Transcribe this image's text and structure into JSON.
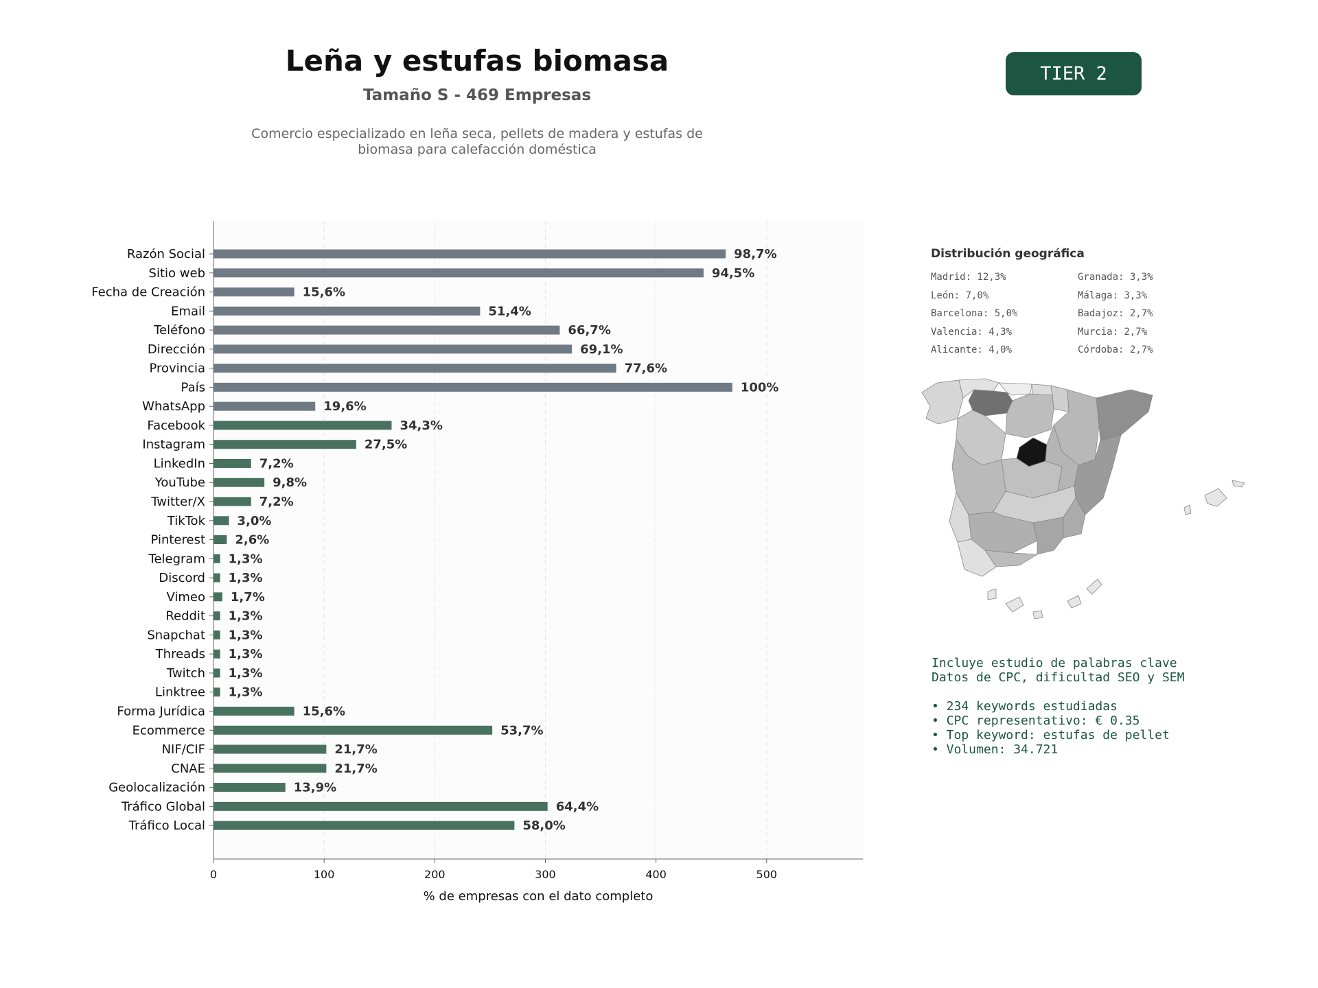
{
  "header": {
    "title": "Leña y estufas biomasa",
    "subtitle": "Tamaño S - 469 Empresas",
    "description_line1": "Comercio especializado en leña seca, pellets de madera y estufas de",
    "description_line2": "biomasa para calefacción doméstica",
    "tier_badge": "TIER 2"
  },
  "chart_data": {
    "type": "bar",
    "orientation": "horizontal",
    "xlabel": "% de empresas con el dato completo",
    "xlim": [
      0,
      587
    ],
    "xticks": [
      0,
      100,
      200,
      300,
      400,
      500
    ],
    "grid": "vertical dashed",
    "colors": {
      "basic": "#6f7a84",
      "extended": "#48725f"
    },
    "categories": [
      "Razón Social",
      "Sitio web",
      "Fecha de Creación",
      "Email",
      "Teléfono",
      "Dirección",
      "Provincia",
      "País",
      "WhatsApp",
      "Facebook",
      "Instagram",
      "LinkedIn",
      "YouTube",
      "Twitter/X",
      "TikTok",
      "Pinterest",
      "Telegram",
      "Discord",
      "Vimeo",
      "Reddit",
      "Snapchat",
      "Threads",
      "Twitch",
      "Linktree",
      "Forma Jurídica",
      "Ecommerce",
      "NIF/CIF",
      "CNAE",
      "Geolocalización",
      "Tráfico Global",
      "Tráfico Local"
    ],
    "values": [
      463,
      443,
      73,
      241,
      313,
      324,
      364,
      469,
      92,
      161,
      129,
      34,
      46,
      34,
      14,
      12,
      6,
      6,
      8,
      6,
      6,
      6,
      6,
      6,
      73,
      252,
      102,
      102,
      65,
      302,
      272
    ],
    "labels": [
      "98,7%",
      "94,5%",
      "15,6%",
      "51,4%",
      "66,7%",
      "69,1%",
      "77,6%",
      "100%",
      "19,6%",
      "34,3%",
      "27,5%",
      "7,2%",
      "9,8%",
      "7,2%",
      "3,0%",
      "2,6%",
      "1,3%",
      "1,3%",
      "1,7%",
      "1,3%",
      "1,3%",
      "1,3%",
      "1,3%",
      "1,3%",
      "15,6%",
      "53,7%",
      "21,7%",
      "21,7%",
      "13,9%",
      "64,4%",
      "58,0%"
    ],
    "groups": [
      "basic",
      "basic",
      "basic",
      "basic",
      "basic",
      "basic",
      "basic",
      "basic",
      "basic",
      "extended",
      "extended",
      "extended",
      "extended",
      "extended",
      "extended",
      "extended",
      "extended",
      "extended",
      "extended",
      "extended",
      "extended",
      "extended",
      "extended",
      "extended",
      "extended",
      "extended",
      "extended",
      "extended",
      "extended",
      "extended",
      "extended"
    ]
  },
  "geo": {
    "title": "Distribución geográfica",
    "items": [
      "Madrid: 12,3%",
      "León: 7,0%",
      "Barcelona: 5,0%",
      "Valencia: 4,3%",
      "Alicante: 4,0%",
      "Granada: 3,3%",
      "Málaga: 3,3%",
      "Badajoz: 2,7%",
      "Murcia: 2,7%",
      "Córdoba: 2,7%"
    ]
  },
  "keywords": {
    "line1": "Incluye estudio de palabras clave",
    "line2": "Datos de CPC, dificultad SEO y SEM",
    "bullets": [
      "• 234 keywords estudiadas",
      "• CPC representativo: € 0.35",
      "• Top keyword: estufas de pellet",
      "• Volumen: 34.721"
    ]
  }
}
